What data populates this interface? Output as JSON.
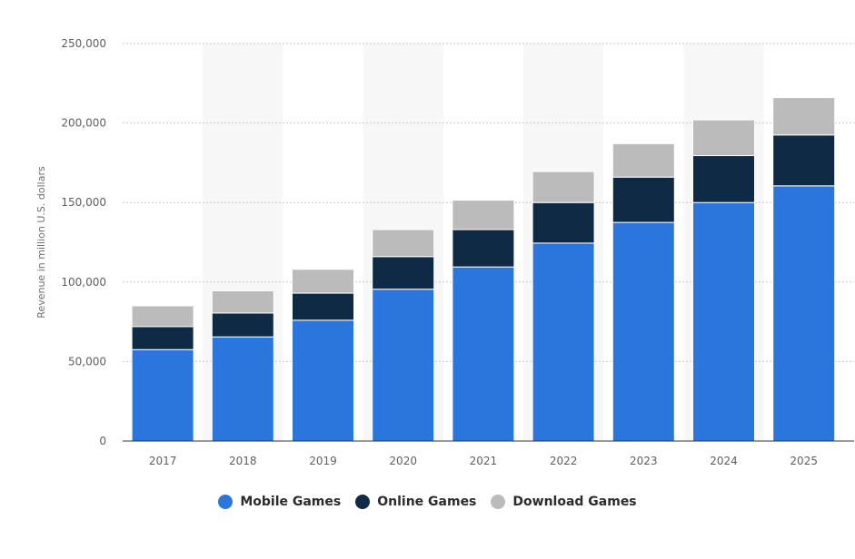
{
  "chart_data": {
    "type": "bar",
    "stacked": true,
    "categories": [
      "2017",
      "2018",
      "2019",
      "2020",
      "2021",
      "2022",
      "2023",
      "2024",
      "2025"
    ],
    "series": [
      {
        "name": "Mobile Games",
        "color": "#2b76dd",
        "values": [
          57500,
          65500,
          76000,
          95500,
          109500,
          124500,
          137500,
          150000,
          160500
        ]
      },
      {
        "name": "Online Games",
        "color": "#0f2a44",
        "values": [
          14500,
          15000,
          17000,
          20500,
          23500,
          25500,
          28500,
          29500,
          32000
        ]
      },
      {
        "name": "Download Games",
        "color": "#bbbbbb",
        "values": [
          13000,
          14000,
          15000,
          17000,
          18500,
          19500,
          21000,
          22500,
          23500
        ]
      }
    ],
    "ylabel": "Revenue in million U.S. dollars",
    "xlabel": "",
    "ylim": [
      0,
      250000
    ],
    "yticks": [
      0,
      50000,
      100000,
      150000,
      200000,
      250000
    ],
    "ytick_labels": [
      "0",
      "50,000",
      "100,000",
      "150,000",
      "200,000",
      "250,000"
    ],
    "grid": true,
    "legend_position": "bottom"
  },
  "legend": {
    "items": [
      {
        "label": "Mobile Games",
        "color": "#2b76dd"
      },
      {
        "label": "Online Games",
        "color": "#0f2a44"
      },
      {
        "label": "Download Games",
        "color": "#bbbbbb"
      }
    ]
  }
}
